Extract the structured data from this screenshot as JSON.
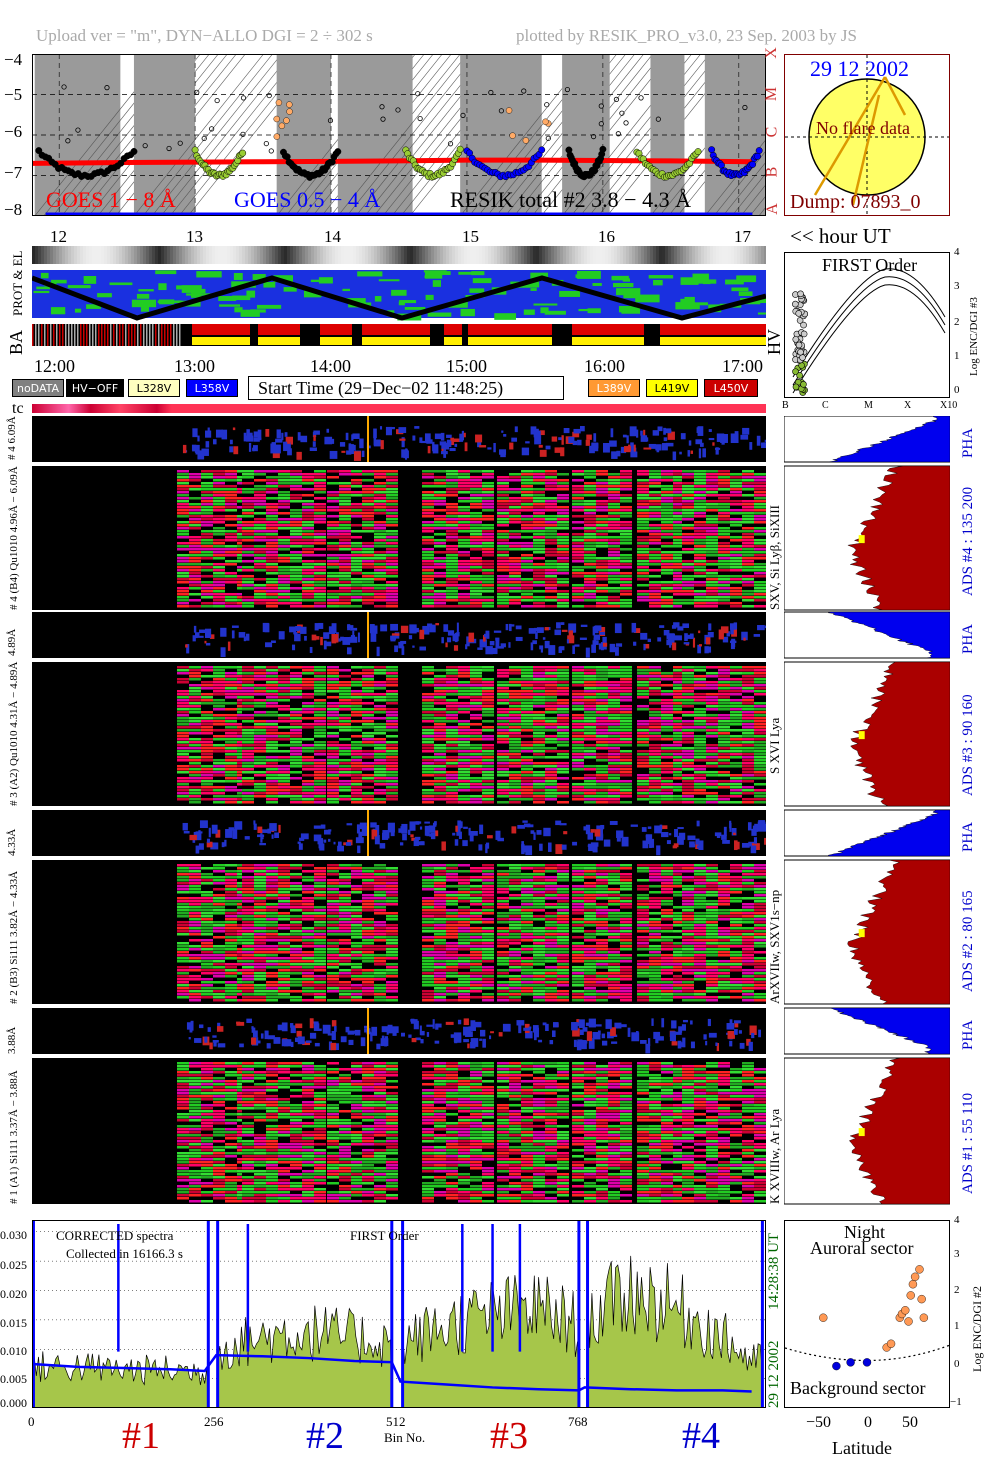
{
  "header": {
    "left": "Upload ver = \"m\", DYN−ALLO DGI =   2 ÷ 302 s",
    "right": "plotted by RESIK_PRO_v3.0, 23 Sep. 2003 by JS"
  },
  "goes": {
    "ylabels": [
      "−4",
      "−5",
      "−6",
      "−7",
      "−8"
    ],
    "class_labels": [
      "X",
      "M",
      "C",
      "B",
      "A"
    ],
    "goes_long_label": "GOES 1 − 8 Å",
    "goes_short_label": "GOES 0.5 − 4 Å",
    "resik_label": "RESIK total #2  3.8 − 4.3 Å",
    "day_ticks": [
      "12",
      "13",
      "14",
      "15",
      "16",
      "17"
    ],
    "colors": {
      "long": "#ff0000",
      "short": "#0000ff",
      "resik": "#000000"
    }
  },
  "sun": {
    "date": "29 12 2002",
    "note": "No flare data",
    "dump": "Dump: 07893_0"
  },
  "hour_ut_label": "<< hour UT",
  "orbit_labels": {
    "prot": "PROT & EL",
    "ba": "BA",
    "hv": "HV"
  },
  "time_ticks": [
    "12:00",
    "13:00",
    "14:00",
    "15:00",
    "16:00",
    "17:00"
  ],
  "legend": {
    "items": [
      {
        "label": "noDATA",
        "color": "#808080",
        "text_color": "#ffffff"
      },
      {
        "label": "HV−OFF",
        "color": "#000000",
        "text_color": "#ffffff"
      },
      {
        "label": "L328V",
        "color": "#ffffc0",
        "text_color": "#000000"
      },
      {
        "label": "L358V",
        "color": "#0000ff",
        "text_color": "#ffffff"
      },
      {
        "label": "L389V",
        "color": "#ff9933",
        "text_color": "#ffffff"
      },
      {
        "label": "L419V",
        "color": "#ffff00",
        "text_color": "#000000"
      },
      {
        "label": "L450V",
        "color": "#cc0000",
        "text_color": "#ffffff"
      }
    ],
    "start_time": "Start Time (29−Dec−02 11:48:25)"
  },
  "tc_label": "tc",
  "first_order": {
    "title": "FIRST Order",
    "ylabel": "Log ENC/DGI #3",
    "yticks": [
      "4",
      "3",
      "2",
      "1",
      "0"
    ],
    "xticks": [
      "B",
      "C",
      "M",
      "X",
      "X10"
    ]
  },
  "channels": [
    {
      "pha_label": "# 4  6.09Å",
      "label": "# 4 (B4) Qu1010 4.96Å − 6.09Å",
      "lines": "SXV, Si Lyβ, SiXIII",
      "ads": "ADS #4 :  135 200",
      "pha": "PHA"
    },
    {
      "pha_label": "4.89Å",
      "label": "# 3 (A2) Qu1010 4.31Å − 4.89Å",
      "lines": "S XVI Lya",
      "ads": "ADS #3 :   90 160",
      "pha": "PHA"
    },
    {
      "pha_label": "4.33Å",
      "label": "# 2 (B3) Si111 3.82Å − 4.33Å",
      "lines": "ArXVIIw, SXV1s−np",
      "ads": "ADS #2 :   80 165",
      "pha": "PHA"
    },
    {
      "pha_label": "3.88Å",
      "label": "# 1 (A1) Si111 3.37Å − 3.88Å",
      "lines": "K XVIIIw, Ar Lya",
      "ads": "ADS #1 :   55 110",
      "pha": "PHA"
    }
  ],
  "spectra": {
    "title_left": "CORRECTED spectra",
    "collected": "Collected in 16166.3 s",
    "title_mid": "FIRST Order",
    "yticks": [
      "0.030",
      "0.025",
      "0.020",
      "0.015",
      "0.010",
      "0.005",
      "0.000"
    ],
    "xticks": [
      "0",
      "256",
      "512",
      "768"
    ],
    "xlabel": "Bin No.",
    "date_label": "29 12 2002",
    "time_label": "14:28:38 UT",
    "sections": [
      {
        "label": "#1",
        "color": "#cc0000"
      },
      {
        "label": "#2",
        "color": "#0000cc"
      },
      {
        "label": "#3",
        "color": "#cc0000"
      },
      {
        "label": "#4",
        "color": "#0000cc"
      }
    ]
  },
  "latitude": {
    "title1": "Night",
    "title2": "Auroral sector",
    "bottom": "Background sector",
    "ylabel": "Log ENC/DGI #2",
    "yticks": [
      "4",
      "3",
      "2",
      "1",
      "0",
      "−1"
    ],
    "xticks": [
      "−50",
      "0",
      "50"
    ],
    "xlabel": "Latitude"
  },
  "chart_data": [
    {
      "type": "scatter",
      "title": "",
      "xlabel": "",
      "ylabel": "",
      "x_ticks": [
        "12",
        "13",
        "14",
        "15",
        "16",
        "17"
      ],
      "ylim": [
        -8,
        -4
      ],
      "series": [
        {
          "name": "GOES 1 − 8 Å",
          "x": [
            11.8,
            12.5,
            13.0,
            13.5,
            14.0,
            14.5,
            15.0,
            15.5,
            16.0,
            16.5,
            17.1
          ],
          "y": [
            -6.7,
            -6.68,
            -6.67,
            -6.66,
            -6.65,
            -6.64,
            -6.62,
            -6.62,
            -6.63,
            -6.64,
            -6.66
          ]
        },
        {
          "name": "GOES 0.5 − 4 Å",
          "x": [
            11.9,
            12.5,
            13.0,
            13.5,
            14.0,
            14.5,
            15.0,
            15.5,
            16.0,
            16.5,
            17.1
          ],
          "y": [
            -8.0,
            -8.0,
            -8.0,
            -8.0,
            -8.0,
            -8.0,
            -8.0,
            -8.0,
            -8.0,
            -8.0,
            -8.0
          ]
        },
        {
          "name": "RESIK total #2  3.8 − 4.3 Å",
          "x": [
            11.85,
            12.1,
            12.3,
            12.45,
            12.6,
            13.0,
            13.2,
            13.4,
            13.7,
            13.9,
            14.1,
            14.3,
            14.6,
            14.8,
            15.05,
            15.3,
            15.5,
            15.8,
            16.0,
            16.25,
            16.5,
            16.75,
            16.95,
            17.05
          ],
          "y": [
            -6.0,
            -6.8,
            -7.1,
            -6.9,
            -6.5,
            -7.0,
            -6.8,
            -6.1,
            -6.6,
            -6.2,
            -6.0,
            -6.2,
            -6.9,
            -6.6,
            -7.0,
            -7.2,
            -6.8,
            -6.3,
            -6.1,
            -6.5,
            -6.9,
            -6.9,
            -7.3,
            -6.9
          ]
        }
      ]
    },
    {
      "type": "line",
      "title": "",
      "xlabel": "Bin No.",
      "ylabel": "",
      "x_ticks": [
        0,
        256,
        512,
        768
      ],
      "ylim": [
        0.0,
        0.032
      ],
      "series": [
        {
          "name": "",
          "x": [
            0,
            64,
            128,
            192,
            240,
            256,
            320,
            384,
            448,
            500,
            512,
            576,
            640,
            704,
            760,
            768,
            832,
            896,
            960,
            1000
          ],
          "y": [
            0.007,
            0.007,
            0.0065,
            0.0065,
            0.006,
            0.01,
            0.012,
            0.013,
            0.012,
            0.011,
            0.011,
            0.014,
            0.016,
            0.017,
            0.014,
            0.015,
            0.02,
            0.017,
            0.012,
            0.008
          ]
        },
        {
          "name": "",
          "x": [
            0,
            64,
            128,
            192,
            240,
            256,
            320,
            384,
            448,
            500,
            512,
            576,
            640,
            704,
            760,
            768,
            832,
            896,
            960,
            1000
          ],
          "y": [
            0.0075,
            0.007,
            0.0068,
            0.0066,
            0.0063,
            0.009,
            0.0088,
            0.0085,
            0.008,
            0.0078,
            0.0045,
            0.004,
            0.0035,
            0.0032,
            0.003,
            0.0035,
            0.0032,
            0.003,
            0.003,
            0.0028
          ]
        }
      ]
    },
    {
      "type": "scatter",
      "title": "",
      "xlabel": "Latitude",
      "ylabel": "Log ENC/DGI #2",
      "x_ticks": [
        -50,
        0,
        50
      ],
      "ylim": [
        -1,
        4
      ],
      "series": [
        {
          "name": "",
          "x": [
            -40,
            -28,
            -15,
            0,
            18,
            22,
            30,
            32,
            35,
            38,
            40,
            42,
            44,
            48,
            50,
            52
          ],
          "y": [
            1.4,
            0.1,
            0.2,
            0.2,
            0.6,
            0.7,
            1.4,
            1.5,
            1.6,
            1.3,
            2.0,
            2.3,
            2.5,
            2.7,
            1.9,
            1.4
          ]
        }
      ]
    }
  ]
}
